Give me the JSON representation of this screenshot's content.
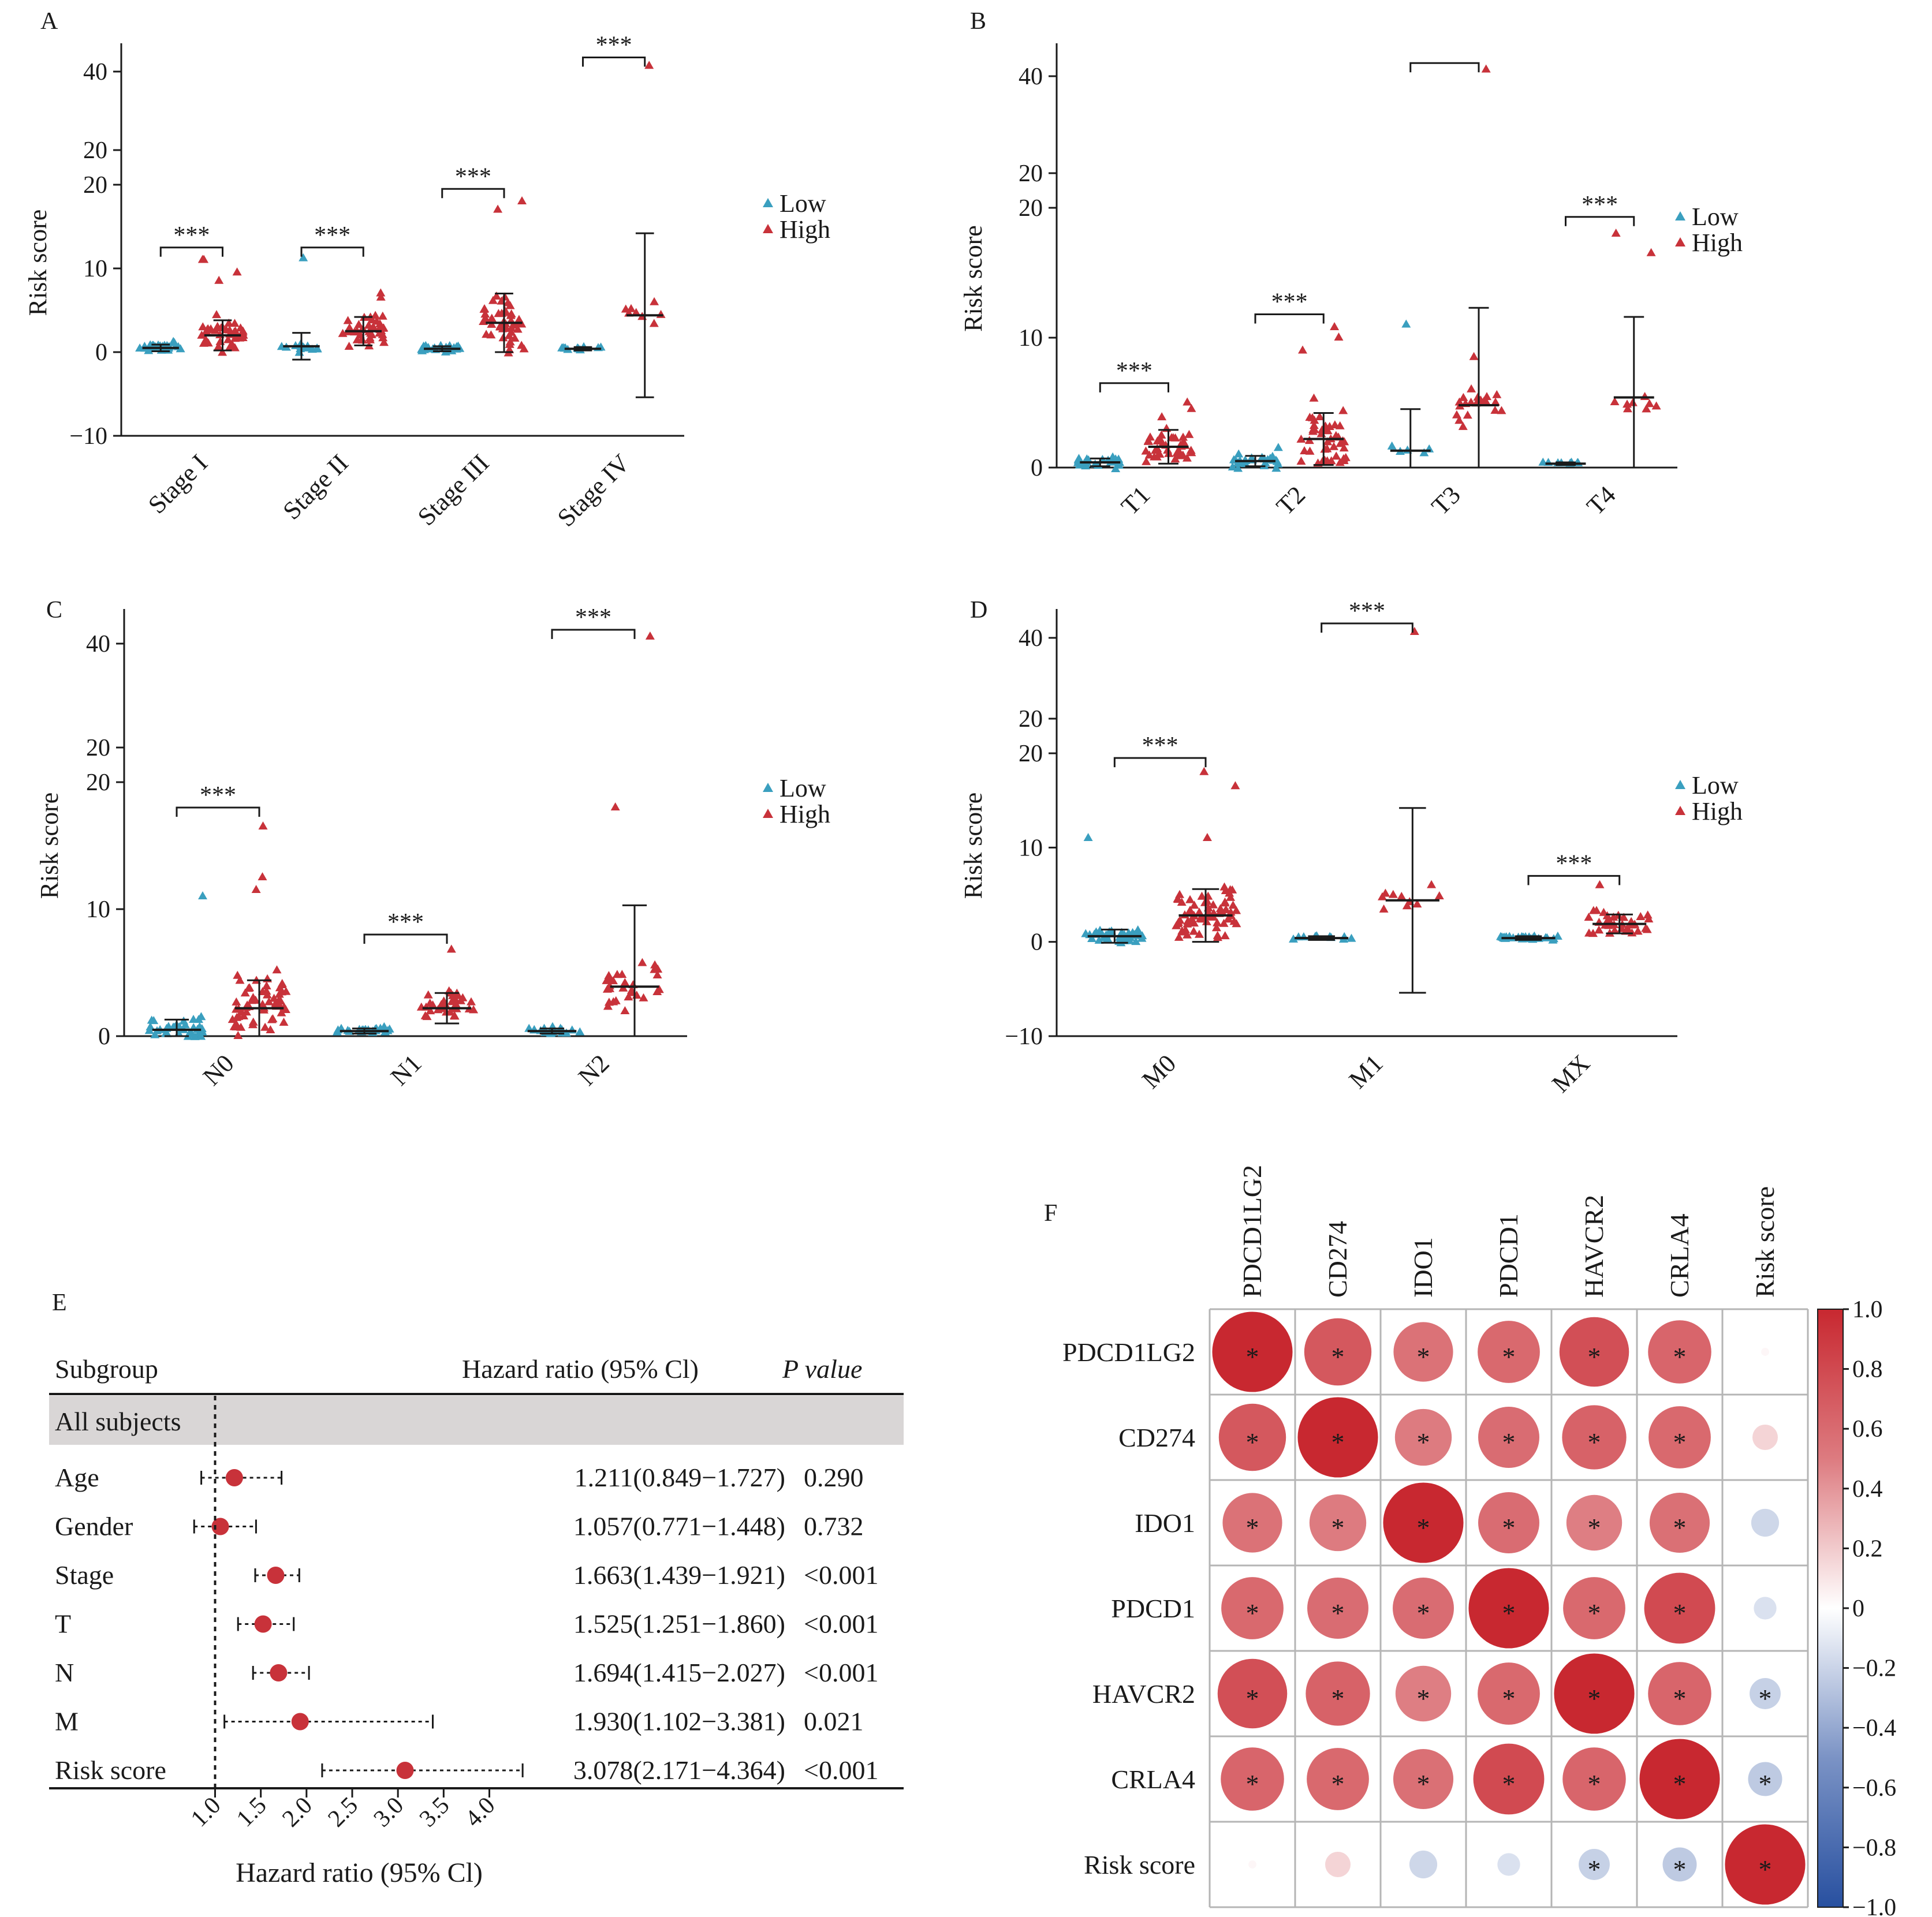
{
  "colors": {
    "low": "#3a9fbf",
    "high": "#c8323a",
    "axis": "#1a1a1a",
    "band": "#d9d6d6"
  },
  "scatter_panels": [
    {
      "letter": "A",
      "ylabel": "Risk score",
      "broken": true,
      "lowTicks": [
        -10,
        0,
        10,
        20
      ],
      "highTicks": [
        20,
        40
      ],
      "legend": [
        "Low",
        "High"
      ],
      "categories": [
        "Stage I",
        "Stage II",
        "Stage III",
        "Stage IV"
      ],
      "groups": [
        {
          "low": {
            "n": 30,
            "mean": 0.5,
            "sd": 0.4,
            "spread": 0.6,
            "extra": [
              1.2
            ]
          },
          "high": {
            "n": 40,
            "mean": 2.0,
            "sd": 1.8,
            "spread": 1.6,
            "extra": [
              11.0,
              11.0,
              9.5,
              8.5
            ]
          },
          "sig": "***",
          "sigY": 12.5
        },
        {
          "low": {
            "n": 14,
            "mean": 0.7,
            "sd": 1.6,
            "spread": 0.6,
            "extra": [
              11.2
            ]
          },
          "high": {
            "n": 40,
            "mean": 2.5,
            "sd": 1.7,
            "spread": 1.6,
            "extra": [
              7.0,
              6.5
            ]
          },
          "sig": "***",
          "sigY": 12.5
        },
        {
          "low": {
            "n": 28,
            "mean": 0.4,
            "sd": 0.3,
            "spread": 0.6,
            "extra": []
          },
          "high": {
            "n": 45,
            "mean": 3.5,
            "sd": 3.5,
            "spread": 2.5,
            "extra": [
              18.0,
              17.0
            ]
          },
          "sig": "***",
          "sigY": 19.5
        },
        {
          "low": {
            "n": 12,
            "mean": 0.4,
            "sd": 0.2,
            "spread": 0.4,
            "extra": []
          },
          "high": {
            "n": 8,
            "mean": 4.4,
            "sd": 9.8,
            "spread": 1.2,
            "extra": [
              41.0
            ]
          },
          "sig": "***",
          "sigY": 42.5
        }
      ]
    },
    {
      "letter": "B",
      "ylabel": "Risk score",
      "broken": true,
      "lowTicks": [
        0,
        10,
        20
      ],
      "highTicks": [
        20,
        40
      ],
      "legend": [
        "Low",
        "High"
      ],
      "categories": [
        "T1",
        "T2",
        "T3",
        "T4"
      ],
      "groups": [
        {
          "low": {
            "n": 30,
            "mean": 0.4,
            "sd": 0.3,
            "spread": 0.6,
            "extra": []
          },
          "high": {
            "n": 40,
            "mean": 1.6,
            "sd": 1.3,
            "spread": 1.6,
            "extra": [
              5.0,
              4.5
            ]
          },
          "sig": "***",
          "sigY": 6.5
        },
        {
          "low": {
            "n": 30,
            "mean": 0.5,
            "sd": 0.4,
            "spread": 0.6,
            "extra": [
              1.5
            ]
          },
          "high": {
            "n": 45,
            "mean": 2.2,
            "sd": 2.0,
            "spread": 2.0,
            "extra": [
              10.8,
              10.0,
              9.0
            ]
          },
          "sig": "***",
          "sigY": 11.8
        },
        {
          "low": {
            "n": 5,
            "mean": 1.3,
            "sd": 3.2,
            "spread": 0.4,
            "extra": [
              11.0
            ]
          },
          "high": {
            "n": 20,
            "mean": 4.8,
            "sd": 7.5,
            "spread": 1.3,
            "extra": [
              41.0,
              8.5
            ]
          },
          "sig": "",
          "sigY": 42.0
        },
        {
          "low": {
            "n": 8,
            "mean": 0.3,
            "sd": 0.1,
            "spread": 0.4,
            "extra": []
          },
          "high": {
            "n": 8,
            "mean": 5.4,
            "sd": 6.2,
            "spread": 1.0,
            "extra": [
              18.0,
              16.5
            ]
          },
          "sig": "***",
          "sigY": 19.3
        }
      ]
    },
    {
      "letter": "C",
      "ylabel": "Risk score",
      "broken": true,
      "lowTicks": [
        0,
        10,
        20
      ],
      "highTicks": [
        20,
        40
      ],
      "legend": [
        "Low",
        "High"
      ],
      "categories": [
        "N0",
        "N1",
        "N2"
      ],
      "groups": [
        {
          "low": {
            "n": 35,
            "mean": 0.5,
            "sd": 0.8,
            "spread": 0.7,
            "extra": [
              11.0
            ]
          },
          "high": {
            "n": 60,
            "mean": 2.2,
            "sd": 2.2,
            "spread": 2.0,
            "extra": [
              16.5,
              12.5,
              11.5
            ]
          },
          "sig": "***",
          "sigY": 18.0
        },
        {
          "low": {
            "n": 25,
            "mean": 0.4,
            "sd": 0.2,
            "spread": 0.6,
            "extra": []
          },
          "high": {
            "n": 35,
            "mean": 2.2,
            "sd": 1.2,
            "spread": 1.6,
            "extra": [
              6.8
            ]
          },
          "sig": "***",
          "sigY": 8.0
        },
        {
          "low": {
            "n": 20,
            "mean": 0.4,
            "sd": 0.2,
            "spread": 0.6,
            "extra": []
          },
          "high": {
            "n": 30,
            "mean": 3.9,
            "sd": 6.4,
            "spread": 1.7,
            "extra": [
              41.0,
              18.0
            ]
          },
          "sig": "***",
          "sigY": 42.0
        }
      ]
    },
    {
      "letter": "D",
      "ylabel": "Risk score",
      "broken": true,
      "lowTicks": [
        -10,
        0,
        10,
        20
      ],
      "highTicks": [
        20,
        40
      ],
      "legend": [
        "Low",
        "High"
      ],
      "categories": [
        "M0",
        "M1",
        "MX"
      ],
      "groups": [
        {
          "low": {
            "n": 35,
            "mean": 0.6,
            "sd": 0.7,
            "spread": 0.7,
            "extra": [
              11.0
            ]
          },
          "high": {
            "n": 70,
            "mean": 2.8,
            "sd": 2.8,
            "spread": 2.0,
            "extra": [
              18.0,
              16.5,
              11.0
            ]
          },
          "sig": "***",
          "sigY": 19.5
        },
        {
          "low": {
            "n": 10,
            "mean": 0.4,
            "sd": 0.2,
            "spread": 0.5,
            "extra": []
          },
          "high": {
            "n": 10,
            "mean": 4.4,
            "sd": 9.8,
            "spread": 1.2,
            "extra": [
              41.0
            ]
          },
          "sig": "***",
          "sigY": 42.5
        },
        {
          "low": {
            "n": 30,
            "mean": 0.4,
            "sd": 0.2,
            "spread": 0.6,
            "extra": []
          },
          "high": {
            "n": 35,
            "mean": 1.9,
            "sd": 1.0,
            "spread": 1.6,
            "extra": [
              6.0
            ]
          },
          "sig": "***",
          "sigY": 7.0
        }
      ]
    }
  ],
  "forest": {
    "letter": "E",
    "headers": [
      "Subgroup",
      "Hazard ratio (95% Cl)",
      "P value"
    ],
    "band_label": "All subjects",
    "rows": [
      {
        "label": "Age",
        "hr": 1.211,
        "lo": 0.849,
        "hi": 1.727,
        "hr_text": "1.211(0.849−1.727)",
        "p": "0.290"
      },
      {
        "label": "Gender",
        "hr": 1.057,
        "lo": 0.771,
        "hi": 1.448,
        "hr_text": "1.057(0.771−1.448)",
        "p": "0.732"
      },
      {
        "label": "Stage",
        "hr": 1.663,
        "lo": 1.439,
        "hi": 1.921,
        "hr_text": "1.663(1.439−1.921)",
        "p": "<0.001"
      },
      {
        "label": "T",
        "hr": 1.525,
        "lo": 1.251,
        "hi": 1.86,
        "hr_text": "1.525(1.251−1.860)",
        "p": "<0.001"
      },
      {
        "label": "N",
        "hr": 1.694,
        "lo": 1.415,
        "hi": 2.027,
        "hr_text": "1.694(1.415−2.027)",
        "p": "<0.001"
      },
      {
        "label": "M",
        "hr": 1.93,
        "lo": 1.102,
        "hi": 3.381,
        "hr_text": "1.930(1.102−3.381)",
        "p": "0.021"
      },
      {
        "label": "Risk score",
        "hr": 3.078,
        "lo": 2.171,
        "hi": 4.364,
        "hr_text": "3.078(2.171−4.364)",
        "p": "<0.001"
      }
    ],
    "xticks": [
      "1.0",
      "1.5",
      "2.0",
      "2.5",
      "3.0",
      "3.5",
      "4.0"
    ],
    "xlabel": "Hazard ratio (95% Cl)"
  },
  "corr": {
    "letter": "F",
    "labels": [
      "PDCD1LG2",
      "CD274",
      "IDO1",
      "PDCD1",
      "HAVCR2",
      "CRLA4",
      "Risk score"
    ],
    "matrix": [
      [
        1.0,
        0.7,
        0.55,
        0.6,
        0.75,
        0.62,
        0.01
      ],
      [
        0.7,
        1.0,
        0.5,
        0.58,
        0.64,
        0.6,
        0.1
      ],
      [
        0.55,
        0.5,
        1.0,
        0.58,
        0.48,
        0.56,
        -0.12
      ],
      [
        0.6,
        0.58,
        0.58,
        1.0,
        0.6,
        0.78,
        -0.08
      ],
      [
        0.75,
        0.64,
        0.48,
        0.6,
        1.0,
        0.62,
        -0.15
      ],
      [
        0.62,
        0.6,
        0.56,
        0.78,
        0.62,
        1.0,
        -0.18
      ],
      [
        0.01,
        0.1,
        -0.12,
        -0.08,
        -0.15,
        -0.18,
        1.0
      ]
    ],
    "sig": [
      [
        1,
        1,
        1,
        1,
        1,
        1,
        0
      ],
      [
        1,
        1,
        1,
        1,
        1,
        1,
        0
      ],
      [
        1,
        1,
        1,
        1,
        1,
        1,
        0
      ],
      [
        1,
        1,
        1,
        1,
        1,
        1,
        0
      ],
      [
        1,
        1,
        1,
        1,
        1,
        1,
        1
      ],
      [
        1,
        1,
        1,
        1,
        1,
        1,
        1
      ],
      [
        0,
        0,
        0,
        0,
        1,
        1,
        1
      ]
    ],
    "star": "*",
    "colorbar_ticks": [
      "1.0",
      "0.8",
      "0.6",
      "0.4",
      "0.2",
      "0",
      "−0.2",
      "−0.4",
      "−0.6",
      "−0.8",
      "−1.0"
    ]
  }
}
